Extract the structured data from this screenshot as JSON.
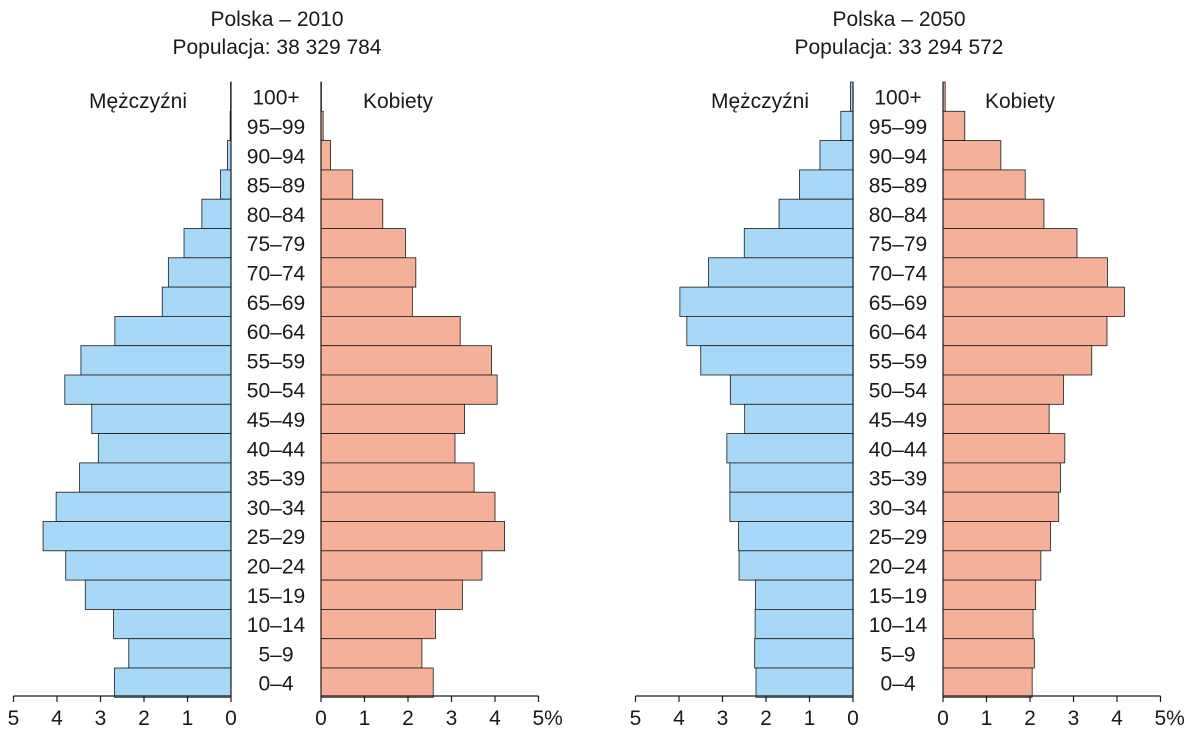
{
  "chart_data": [
    {
      "type": "bar",
      "title": "Polska – 2010",
      "subtitle": "Populacja: 38 329 784",
      "left_label": "Mężczyźni",
      "right_label": "Kobiety",
      "categories": [
        "100+",
        "95–99",
        "90–94",
        "85–89",
        "80–84",
        "75–79",
        "70–74",
        "65–69",
        "60–64",
        "55–59",
        "50–54",
        "45–49",
        "40–44",
        "35–39",
        "30–34",
        "25–29",
        "20–24",
        "15–19",
        "10–14",
        "5–9",
        "0–4"
      ],
      "series": [
        {
          "name": "Mężczyźni",
          "values": [
            0.01,
            0.02,
            0.08,
            0.24,
            0.67,
            1.08,
            1.44,
            1.58,
            2.67,
            3.45,
            3.82,
            3.2,
            3.05,
            3.48,
            4.02,
            4.32,
            3.8,
            3.35,
            2.7,
            2.35,
            2.68
          ]
        },
        {
          "name": "Kobiety",
          "values": [
            0.01,
            0.05,
            0.22,
            0.73,
            1.42,
            1.94,
            2.18,
            2.1,
            3.2,
            3.92,
            4.05,
            3.3,
            3.08,
            3.52,
            4.0,
            4.22,
            3.7,
            3.25,
            2.63,
            2.32,
            2.58
          ]
        }
      ],
      "xlim": [
        0,
        5
      ],
      "ticks_left": [
        "5",
        "4",
        "3",
        "2",
        "1",
        "0"
      ],
      "ticks_right": [
        "0",
        "1",
        "2",
        "3",
        "4",
        "5%"
      ]
    },
    {
      "type": "bar",
      "title": "Polska – 2050",
      "subtitle": "Populacja: 33 294 572",
      "left_label": "Mężczyźni",
      "right_label": "Kobiety",
      "categories": [
        "100+",
        "95–99",
        "90–94",
        "85–89",
        "80–84",
        "75–79",
        "70–74",
        "65–69",
        "60–64",
        "55–59",
        "50–54",
        "45–49",
        "40–44",
        "35–39",
        "30–34",
        "25–29",
        "20–24",
        "15–19",
        "10–14",
        "5–9",
        "0–4"
      ],
      "series": [
        {
          "name": "Mężczyźni",
          "values": [
            0.06,
            0.28,
            0.76,
            1.23,
            1.7,
            2.5,
            3.32,
            3.98,
            3.82,
            3.5,
            2.82,
            2.49,
            2.9,
            2.83,
            2.83,
            2.63,
            2.62,
            2.24,
            2.25,
            2.26,
            2.23
          ]
        },
        {
          "name": "Kobiety",
          "values": [
            0.05,
            0.5,
            1.33,
            1.89,
            2.32,
            3.08,
            3.78,
            4.17,
            3.77,
            3.42,
            2.77,
            2.44,
            2.8,
            2.7,
            2.66,
            2.47,
            2.25,
            2.13,
            2.07,
            2.1,
            2.05
          ]
        }
      ],
      "xlim": [
        0,
        5
      ],
      "ticks_left": [
        "5",
        "4",
        "3",
        "2",
        "1",
        "0"
      ],
      "ticks_right": [
        "0",
        "1",
        "2",
        "3",
        "4",
        "5%"
      ]
    }
  ],
  "colors": {
    "male": "#a7d8f7",
    "female": "#f5b09a",
    "stroke": "#1a1a1a"
  }
}
